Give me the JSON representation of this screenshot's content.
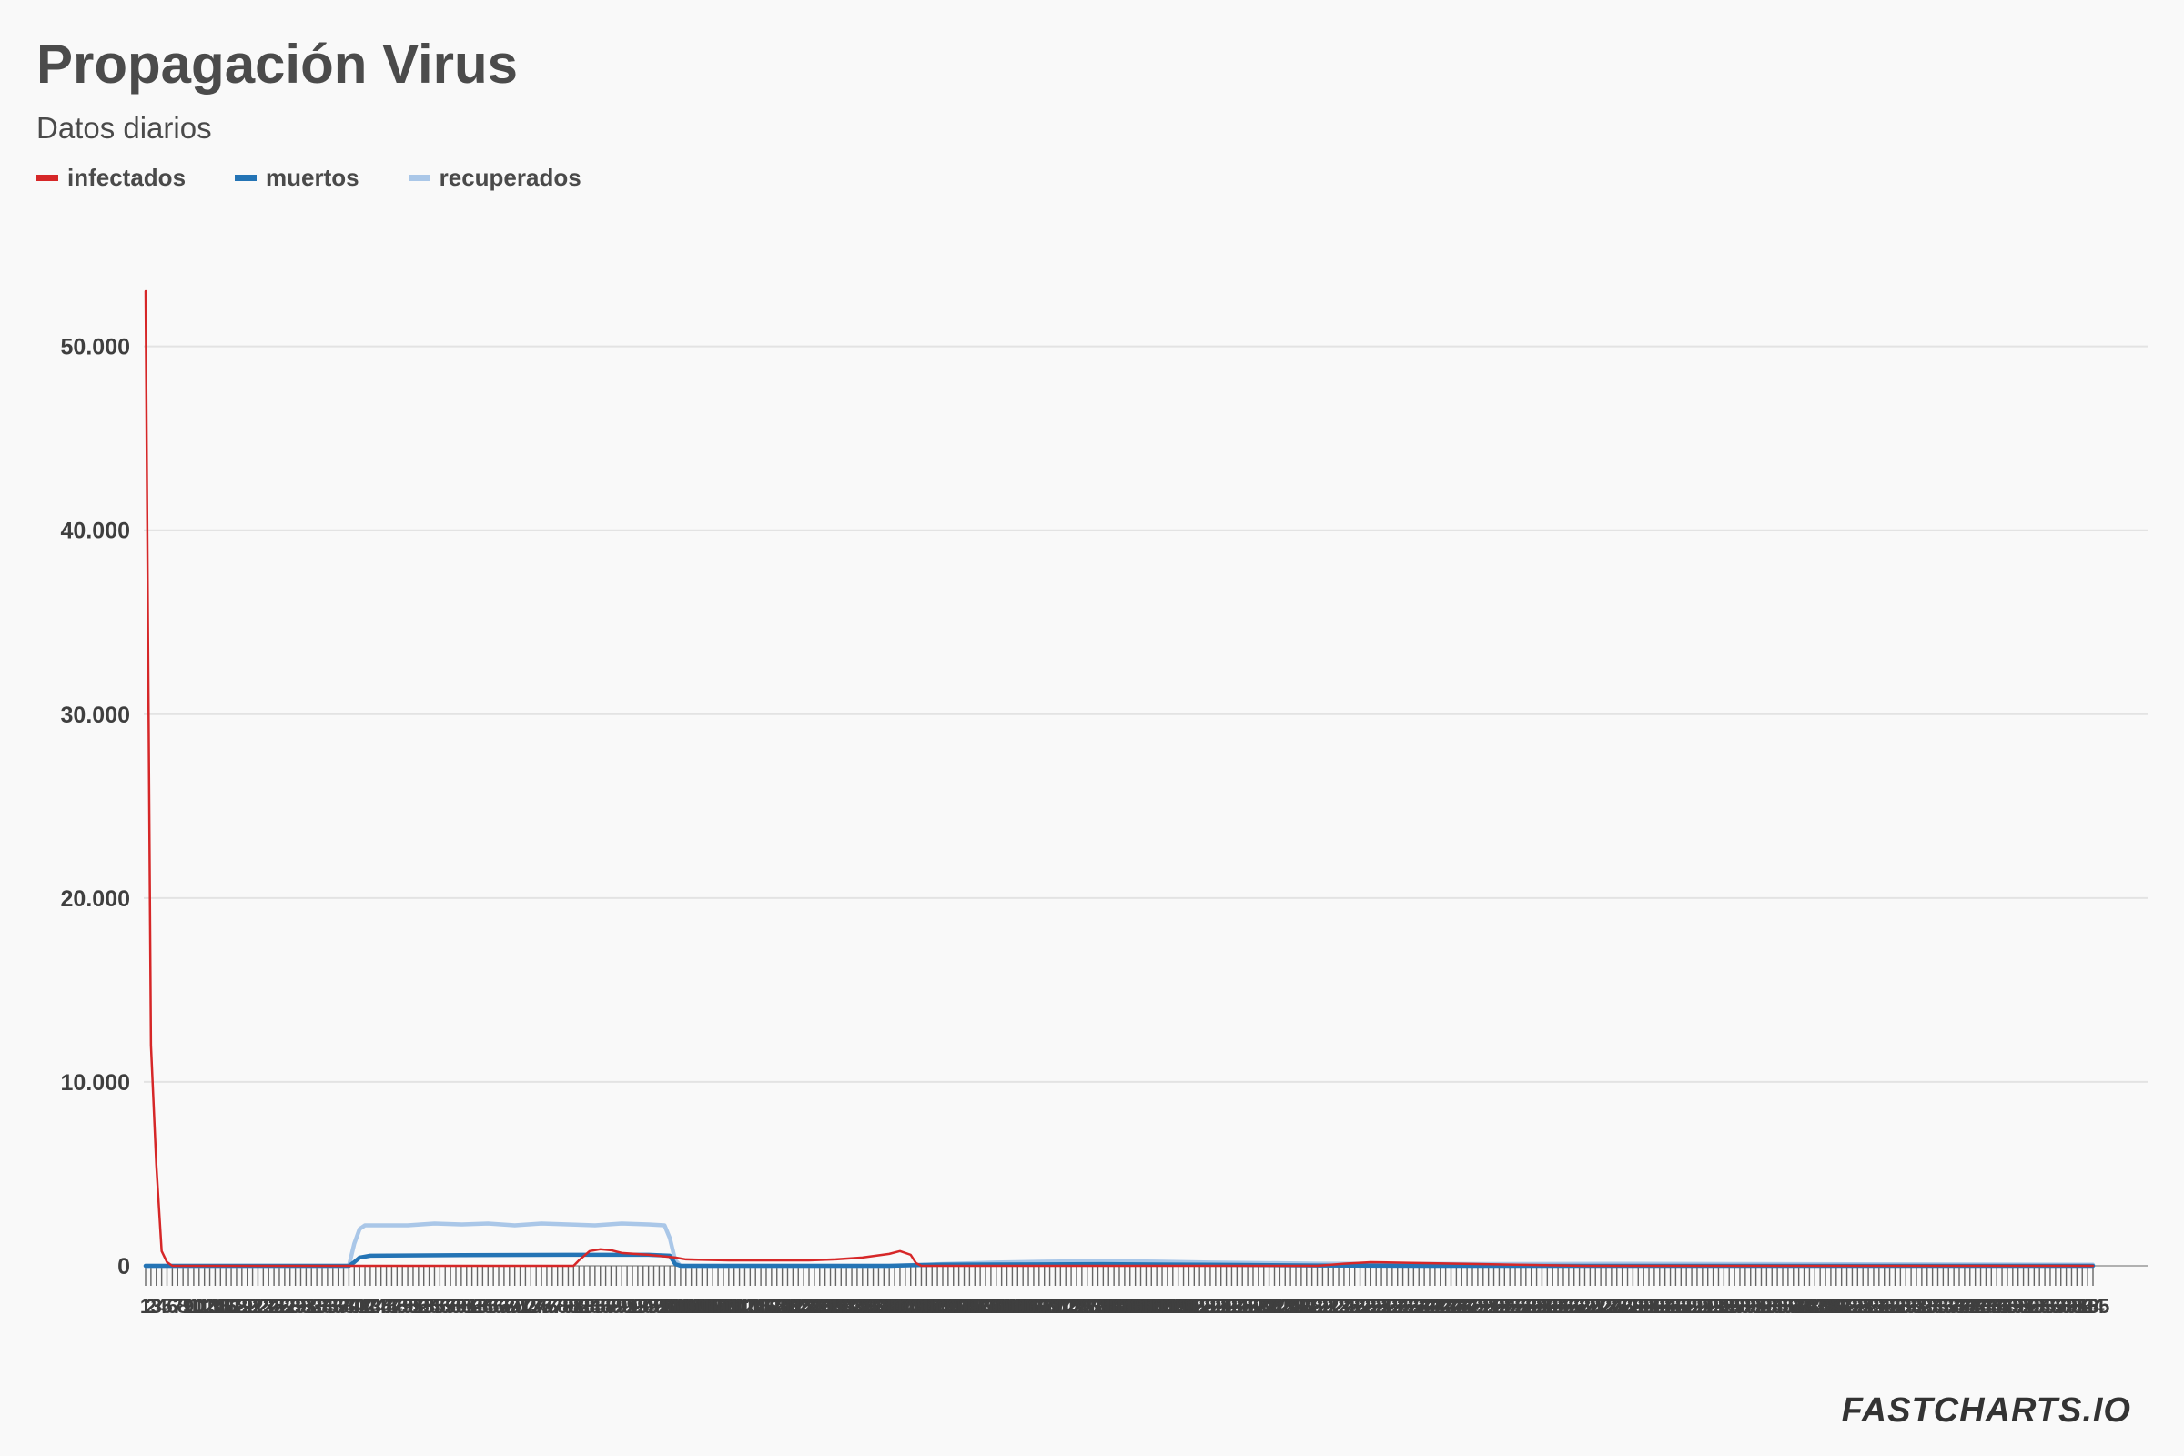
{
  "chart_data": {
    "type": "line",
    "title": "Propagación Virus",
    "subtitle": "Datos diarios",
    "xlabel": "",
    "ylabel": "",
    "ylim": [
      0,
      53000
    ],
    "yticks": [
      0,
      10000,
      20000,
      30000,
      40000,
      50000
    ],
    "ytick_labels": [
      "0",
      "10.000",
      "20.000",
      "30.000",
      "40.000",
      "50.000"
    ],
    "x_count": 365,
    "x_first_label": "1",
    "x_last_label": "365",
    "grid": true,
    "legend_position": "top-left",
    "series": [
      {
        "name": "infectados",
        "color": "#d62728",
        "points": [
          [
            1,
            53000
          ],
          [
            2,
            12000
          ],
          [
            3,
            5500
          ],
          [
            4,
            800
          ],
          [
            5,
            200
          ],
          [
            6,
            0
          ],
          [
            81,
            0
          ],
          [
            82,
            300
          ],
          [
            84,
            800
          ],
          [
            86,
            900
          ],
          [
            88,
            850
          ],
          [
            90,
            700
          ],
          [
            95,
            600
          ],
          [
            100,
            450
          ],
          [
            102,
            350
          ],
          [
            110,
            300
          ],
          [
            120,
            300
          ],
          [
            125,
            300
          ],
          [
            130,
            350
          ],
          [
            135,
            450
          ],
          [
            140,
            650
          ],
          [
            142,
            800
          ],
          [
            144,
            600
          ],
          [
            145,
            150
          ],
          [
            146,
            0
          ],
          [
            220,
            0
          ],
          [
            225,
            120
          ],
          [
            230,
            200
          ],
          [
            240,
            150
          ],
          [
            250,
            100
          ],
          [
            260,
            50
          ],
          [
            270,
            0
          ],
          [
            365,
            0
          ]
        ]
      },
      {
        "name": "muertos",
        "color": "#2474b5",
        "points": [
          [
            1,
            0
          ],
          [
            39,
            0
          ],
          [
            40,
            200
          ],
          [
            41,
            450
          ],
          [
            43,
            550
          ],
          [
            60,
            580
          ],
          [
            80,
            600
          ],
          [
            95,
            600
          ],
          [
            99,
            550
          ],
          [
            100,
            100
          ],
          [
            101,
            0
          ],
          [
            140,
            0
          ],
          [
            150,
            70
          ],
          [
            180,
            90
          ],
          [
            200,
            60
          ],
          [
            220,
            20
          ],
          [
            240,
            0
          ],
          [
            365,
            0
          ]
        ]
      },
      {
        "name": "recuperados",
        "color": "#aac7e8",
        "points": [
          [
            1,
            0
          ],
          [
            39,
            0
          ],
          [
            40,
            1200
          ],
          [
            41,
            2000
          ],
          [
            42,
            2200
          ],
          [
            50,
            2200
          ],
          [
            55,
            2300
          ],
          [
            60,
            2250
          ],
          [
            65,
            2300
          ],
          [
            70,
            2200
          ],
          [
            75,
            2300
          ],
          [
            80,
            2250
          ],
          [
            85,
            2200
          ],
          [
            90,
            2300
          ],
          [
            95,
            2250
          ],
          [
            98,
            2200
          ],
          [
            99,
            1500
          ],
          [
            100,
            300
          ],
          [
            101,
            0
          ],
          [
            140,
            0
          ],
          [
            150,
            100
          ],
          [
            160,
            180
          ],
          [
            170,
            230
          ],
          [
            180,
            260
          ],
          [
            190,
            230
          ],
          [
            200,
            180
          ],
          [
            210,
            150
          ],
          [
            220,
            120
          ],
          [
            250,
            100
          ],
          [
            280,
            110
          ],
          [
            300,
            100
          ],
          [
            330,
            80
          ],
          [
            365,
            60
          ]
        ]
      }
    ]
  },
  "branding": {
    "text": "FASTCHARTS.IO"
  }
}
